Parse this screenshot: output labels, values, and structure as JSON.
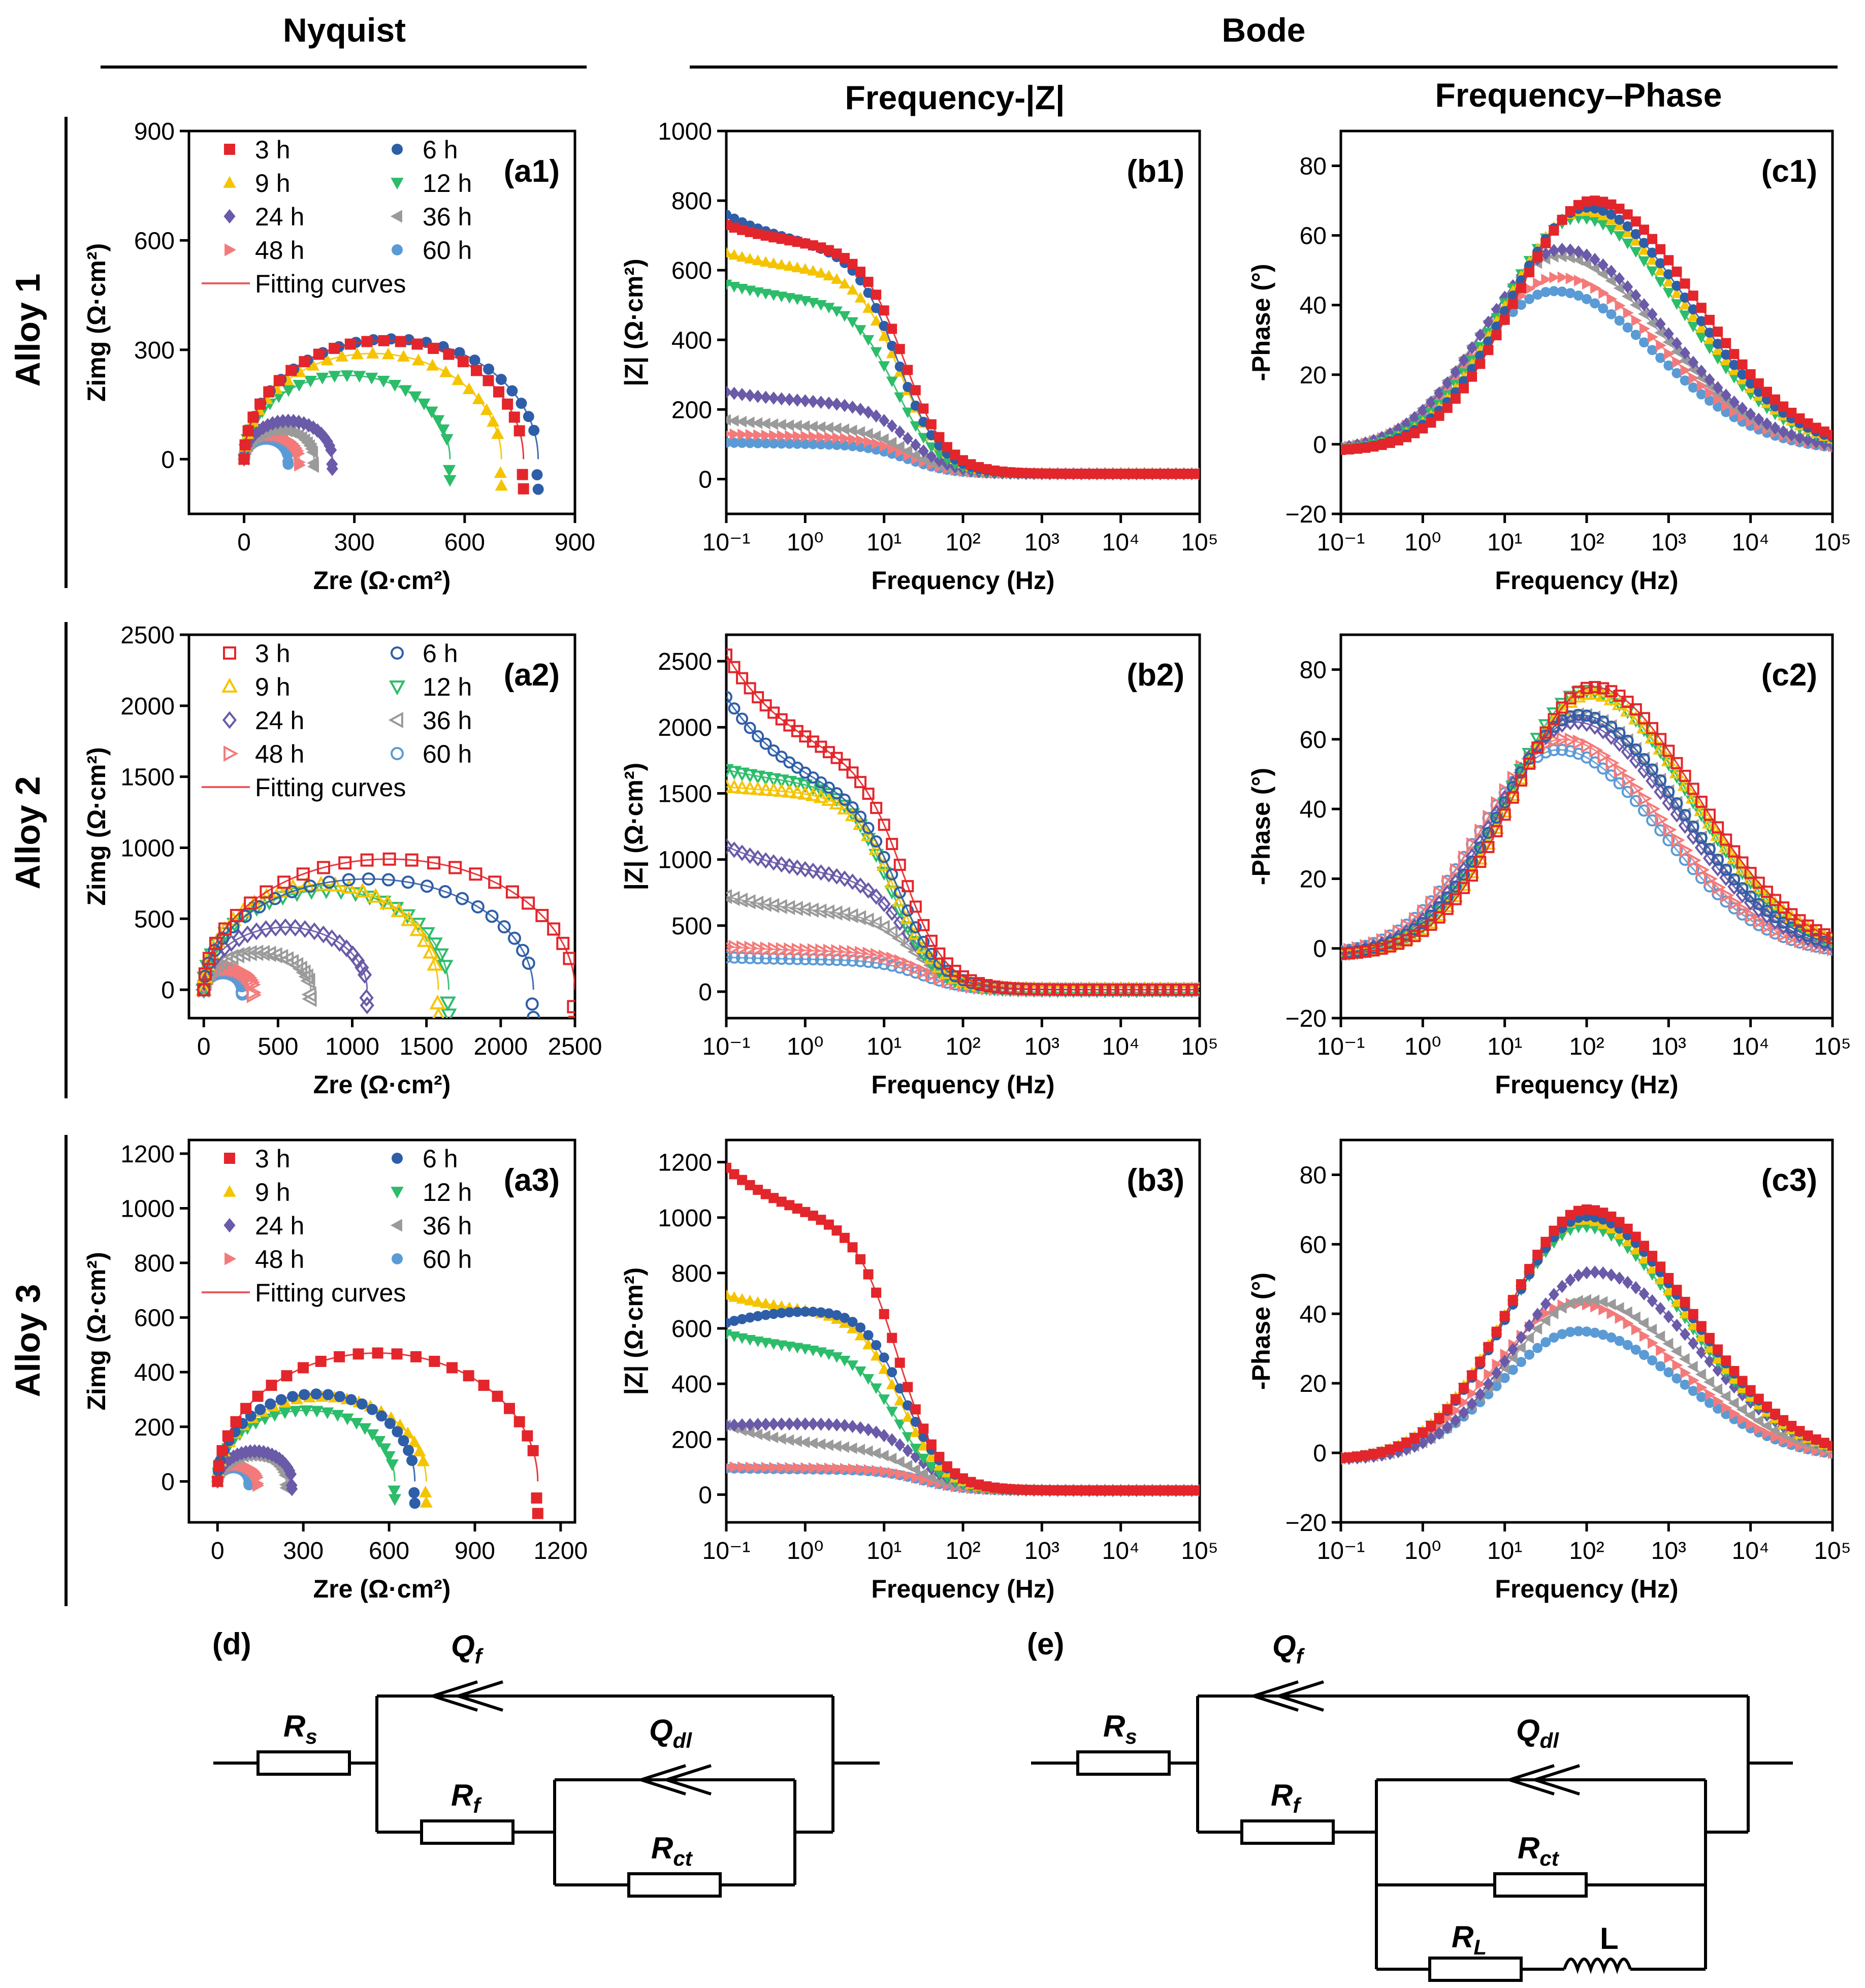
{
  "headers": {
    "nyquist": "Nyquist",
    "bode": "Bode",
    "freq_z": "Frequency-|Z|",
    "freq_phase": "Frequency–Phase"
  },
  "rows": [
    {
      "label": "Alloy 1"
    },
    {
      "label": "Alloy 2"
    },
    {
      "label": "Alloy 3"
    }
  ],
  "legend": {
    "times": [
      "3 h",
      "6 h",
      "9 h",
      "12 h",
      "24 h",
      "36 h",
      "48 h",
      "60 h"
    ],
    "fit_label": "Fitting curves",
    "colors": [
      "#e3262b",
      "#2f5ea8",
      "#f5c400",
      "#2cbc6a",
      "#6a5aa8",
      "#9a9a9a",
      "#f47a7a",
      "#5b9bd5"
    ],
    "markers": [
      "square",
      "circle",
      "triangle-up",
      "triangle-down",
      "diamond",
      "triangle-left",
      "triangle-right",
      "circle"
    ],
    "fit_color": "#e85c5c"
  },
  "chart_data": [
    {
      "id": "a1",
      "panel_label": "(a1)",
      "type": "scatter",
      "alloy": "Alloy 1",
      "filled": true,
      "xlabel": "Zre (Ω·cm²)",
      "ylabel": "Zimg (Ω·cm²)",
      "xlim": [
        -150,
        900
      ],
      "ylim": [
        -150,
        900
      ],
      "xticks": [
        0,
        300,
        600,
        900
      ],
      "yticks": [
        0,
        300,
        600,
        900
      ],
      "xtick_labels": [
        "0",
        "300",
        "600",
        "900"
      ],
      "ytick_labels": [
        "0",
        "300",
        "600",
        "900"
      ],
      "series_R": [
        760,
        800,
        700,
        560,
        240,
        190,
        150,
        120
      ],
      "series_Zmax": [
        325,
        330,
        290,
        230,
        105,
        80,
        65,
        55
      ]
    },
    {
      "id": "b1",
      "panel_label": "(b1)",
      "type": "line",
      "alloy": "Alloy 1",
      "filled": true,
      "xlabel": "Frequency (Hz)",
      "ylabel": "|Z| (Ω·cm²)",
      "xscale": "log",
      "xlim": [
        0.1,
        100000
      ],
      "ylim": [
        -100,
        1000
      ],
      "yticks": [
        0,
        200,
        400,
        600,
        800,
        1000
      ],
      "ytick_labels": [
        "0",
        "200",
        "400",
        "600",
        "800",
        "1000"
      ],
      "xtick_labels": [
        "10⁻¹",
        "10⁰",
        "10¹",
        "10²",
        "10³",
        "10⁴",
        "10⁵"
      ],
      "series_Zlow": [
        730,
        760,
        650,
        560,
        250,
        170,
        130,
        105
      ],
      "series_Zplat": [
        660,
        650,
        590,
        500,
        215,
        145,
        120,
        100
      ],
      "series_fc": [
        18,
        15,
        16,
        14,
        20,
        20,
        20,
        20
      ]
    },
    {
      "id": "c1",
      "panel_label": "(c1)",
      "type": "line",
      "alloy": "Alloy 1",
      "filled": true,
      "xlabel": "Frequency (Hz)",
      "ylabel": "-Phase (°)",
      "xscale": "log",
      "xlim": [
        0.1,
        100000
      ],
      "ylim": [
        -20,
        90
      ],
      "yticks": [
        -20,
        0,
        20,
        40,
        60,
        80
      ],
      "ytick_labels": [
        "−20",
        "0",
        "20",
        "40",
        "60",
        "80"
      ],
      "xtick_labels": [
        "10⁻¹",
        "10⁰",
        "10¹",
        "10²",
        "10³",
        "10⁴",
        "10⁵"
      ],
      "series_peak": [
        70,
        68,
        67,
        65,
        56,
        54,
        48,
        44
      ],
      "series_fpeak": [
        120,
        100,
        90,
        80,
        50,
        45,
        45,
        40
      ]
    },
    {
      "id": "a2",
      "panel_label": "(a2)",
      "type": "scatter",
      "alloy": "Alloy 2",
      "filled": false,
      "xlabel": "Zre (Ω·cm²)",
      "ylabel": "Zimg (Ω·cm²)",
      "xlim": [
        -100,
        2500
      ],
      "ylim": [
        -200,
        2500
      ],
      "xticks": [
        0,
        500,
        1000,
        1500,
        2000,
        2500
      ],
      "yticks": [
        0,
        500,
        1000,
        1500,
        2000,
        2500
      ],
      "xtick_labels": [
        "0",
        "500",
        "1000",
        "1500",
        "2000",
        "2500"
      ],
      "ytick_labels": [
        "0",
        "500",
        "1000",
        "1500",
        "2000",
        "2500"
      ],
      "series_R": [
        2500,
        2220,
        1580,
        1650,
        1100,
        720,
        330,
        260
      ],
      "series_Zmax": [
        920,
        780,
        740,
        700,
        440,
        260,
        150,
        120
      ]
    },
    {
      "id": "b2",
      "panel_label": "(b2)",
      "type": "line",
      "alloy": "Alloy 2",
      "filled": false,
      "xlabel": "Frequency (Hz)",
      "ylabel": "|Z| (Ω·cm²)",
      "xscale": "log",
      "xlim": [
        0.1,
        100000
      ],
      "ylim": [
        -200,
        2700
      ],
      "yticks": [
        0,
        500,
        1000,
        1500,
        2000,
        2500
      ],
      "ytick_labels": [
        "0",
        "500",
        "1000",
        "1500",
        "2000",
        "2500"
      ],
      "xtick_labels": [
        "10⁻¹",
        "10⁰",
        "10¹",
        "10²",
        "10³",
        "10⁴",
        "10⁵"
      ],
      "series_Zlow": [
        2550,
        2230,
        1550,
        1680,
        1100,
        720,
        340,
        260
      ],
      "series_Zplat": [
        1650,
        1400,
        1500,
        1550,
        850,
        580,
        300,
        240
      ],
      "series_fc": [
        18,
        16,
        14,
        12,
        20,
        25,
        30,
        30
      ]
    },
    {
      "id": "c2",
      "panel_label": "(c2)",
      "type": "line",
      "alloy": "Alloy 2",
      "filled": false,
      "xlabel": "Frequency (Hz)",
      "ylabel": "-Phase (°)",
      "xscale": "log",
      "xlim": [
        0.1,
        100000
      ],
      "ylim": [
        -20,
        90
      ],
      "yticks": [
        -20,
        0,
        20,
        40,
        60,
        80
      ],
      "ytick_labels": [
        "−20",
        "0",
        "20",
        "40",
        "60",
        "80"
      ],
      "xtick_labels": [
        "10⁻¹",
        "10⁰",
        "10¹",
        "10²",
        "10³",
        "10⁴",
        "10⁵"
      ],
      "series_peak": [
        75,
        67,
        73,
        74,
        65,
        67,
        60,
        57
      ],
      "series_fpeak": [
        120,
        80,
        110,
        100,
        70,
        80,
        50,
        45
      ]
    },
    {
      "id": "a3",
      "panel_label": "(a3)",
      "type": "scatter",
      "alloy": "Alloy 3",
      "filled": true,
      "xlabel": "Zre (Ω·cm²)",
      "ylabel": "Zimg (Ω·cm²)",
      "xlim": [
        -100,
        1250
      ],
      "ylim": [
        -150,
        1250
      ],
      "xticks": [
        0,
        300,
        600,
        900,
        1200
      ],
      "yticks": [
        0,
        200,
        400,
        600,
        800,
        1000,
        1200
      ],
      "xtick_labels": [
        "0",
        "300",
        "600",
        "900",
        "1200"
      ],
      "ytick_labels": [
        "0",
        "200",
        "400",
        "600",
        "800",
        "1000",
        "1200"
      ],
      "series_R": [
        1120,
        690,
        730,
        620,
        260,
        240,
        140,
        110
      ],
      "series_Zmax": [
        470,
        320,
        310,
        260,
        110,
        95,
        60,
        50
      ]
    },
    {
      "id": "b3",
      "panel_label": "(b3)",
      "type": "line",
      "alloy": "Alloy 3",
      "filled": true,
      "xlabel": "Frequency (Hz)",
      "ylabel": "|Z| (Ω·cm²)",
      "xscale": "log",
      "xlim": [
        0.1,
        100000
      ],
      "ylim": [
        -100,
        1280
      ],
      "yticks": [
        0,
        200,
        400,
        600,
        800,
        1000,
        1200
      ],
      "ytick_labels": [
        "0",
        "200",
        "400",
        "600",
        "800",
        "1000",
        "1200"
      ],
      "xtick_labels": [
        "10⁻¹",
        "10⁰",
        "10¹",
        "10²",
        "10³",
        "10⁴",
        "10⁵"
      ],
      "series_Zlow": [
        1180,
        620,
        720,
        580,
        250,
        250,
        100,
        95
      ],
      "series_Zplat": [
        960,
        690,
        650,
        510,
        260,
        160,
        95,
        90
      ],
      "series_fc": [
        15,
        18,
        16,
        15,
        25,
        25,
        30,
        30
      ]
    },
    {
      "id": "c3",
      "panel_label": "(c3)",
      "type": "line",
      "alloy": "Alloy 3",
      "filled": true,
      "xlabel": "Frequency (Hz)",
      "ylabel": "-Phase (°)",
      "xscale": "log",
      "xlim": [
        0.1,
        100000
      ],
      "ylim": [
        -20,
        90
      ],
      "yticks": [
        -20,
        0,
        20,
        40,
        60,
        80
      ],
      "ytick_labels": [
        "−20",
        "0",
        "20",
        "40",
        "60",
        "80"
      ],
      "xtick_labels": [
        "10⁻¹",
        "10⁰",
        "10¹",
        "10²",
        "10³",
        "10⁴",
        "10⁵"
      ],
      "series_peak": [
        70,
        68,
        67,
        65,
        52,
        44,
        43,
        35
      ],
      "series_fpeak": [
        100,
        100,
        90,
        90,
        120,
        100,
        70,
        80
      ]
    }
  ],
  "circuits": [
    {
      "label": "(d)",
      "Rs": "R",
      "Rs_sub": "s",
      "Qf": "Q",
      "Qf_sub": "f",
      "Rf": "R",
      "Rf_sub": "f",
      "Qdl": "Q",
      "Qdl_sub": "dl",
      "Rct": "R",
      "Rct_sub": "ct"
    },
    {
      "label": "(e)",
      "Rs": "R",
      "Rs_sub": "s",
      "Qf": "Q",
      "Qf_sub": "f",
      "Rf": "R",
      "Rf_sub": "f",
      "Qdl": "Q",
      "Qdl_sub": "dl",
      "Rct": "R",
      "Rct_sub": "ct",
      "RL": "R",
      "RL_sub": "L",
      "L": "L"
    }
  ]
}
